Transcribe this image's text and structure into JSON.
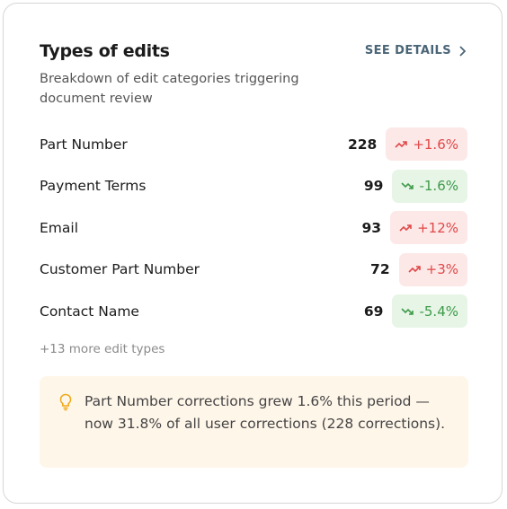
{
  "header": {
    "title": "Types of edits",
    "subtitle": "Breakdown of edit categories triggering document review",
    "action": "SEE DETAILS"
  },
  "rows": [
    {
      "label": "Part Number",
      "count": 228,
      "change": "+1.6%",
      "trend": "up"
    },
    {
      "label": "Payment Terms",
      "count": 99,
      "change": "-1.6%",
      "trend": "down"
    },
    {
      "label": "Email",
      "count": 93,
      "change": "+12%",
      "trend": "up"
    },
    {
      "label": "Customer Part Number",
      "count": 72,
      "change": "+3%",
      "trend": "up"
    },
    {
      "label": "Contact Name",
      "count": 69,
      "change": "-5.4%",
      "trend": "down"
    }
  ],
  "more": "+13 more edit types",
  "insight": "Part Number corrections grew 1.6% this period — now 31.8% of all user corrections (228 corrections)."
}
